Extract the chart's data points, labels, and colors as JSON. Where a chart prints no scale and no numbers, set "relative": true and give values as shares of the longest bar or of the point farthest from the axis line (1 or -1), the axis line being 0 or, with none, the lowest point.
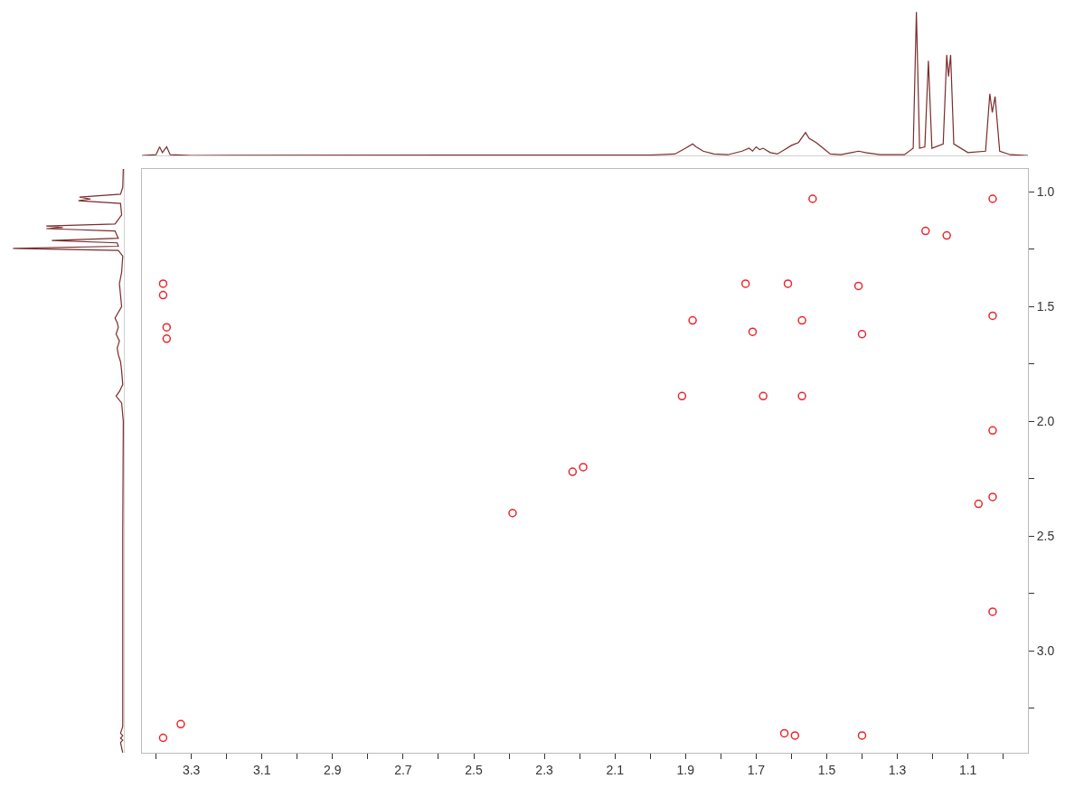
{
  "chart_data": [
    {
      "type": "line",
      "relative": true,
      "xlim": [
        3.44,
        0.93
      ],
      "tick_labels": false,
      "series": [
        {
          "color": "#7b2c2c",
          "x": [
            3.44,
            3.4,
            3.39,
            3.382,
            3.37,
            3.36,
            3.3,
            2.0,
            1.93,
            1.9,
            1.88,
            1.87,
            1.85,
            1.82,
            1.78,
            1.74,
            1.72,
            1.71,
            1.7,
            1.69,
            1.68,
            1.66,
            1.64,
            1.62,
            1.6,
            1.58,
            1.56,
            1.55,
            1.53,
            1.51,
            1.49,
            1.46,
            1.43,
            1.41,
            1.39,
            1.35,
            1.28,
            1.255,
            1.246,
            1.237,
            1.222,
            1.212,
            1.202,
            1.17,
            1.16,
            1.155,
            1.149,
            1.14,
            1.1,
            1.05,
            1.038,
            1.031,
            1.023,
            1.01,
            0.98,
            0.93
          ],
          "values": [
            0,
            0.005,
            0.06,
            0.02,
            0.06,
            0.005,
            0,
            0.003,
            0.01,
            0.05,
            0.08,
            0.06,
            0.03,
            0.01,
            0.005,
            0.03,
            0.05,
            0.03,
            0.06,
            0.04,
            0.05,
            0.02,
            0.01,
            0.04,
            0.07,
            0.09,
            0.16,
            0.12,
            0.09,
            0.05,
            0.01,
            0.005,
            0.02,
            0.03,
            0.02,
            0.005,
            0.005,
            0.05,
            1.0,
            0.05,
            0.06,
            0.66,
            0.05,
            0.08,
            0.7,
            0.55,
            0.7,
            0.08,
            0.02,
            0.03,
            0.43,
            0.3,
            0.41,
            0.03,
            0.005,
            0
          ]
        }
      ]
    },
    {
      "type": "line",
      "relative": true,
      "orientation": "horizontal",
      "ylim": [
        3.445,
        0.9
      ],
      "tick_labels": false,
      "series": [
        {
          "color": "#7b2c2c",
          "x": [
            0.9,
            0.98,
            1.01,
            1.023,
            1.031,
            1.038,
            1.05,
            1.1,
            1.14,
            1.149,
            1.155,
            1.16,
            1.17,
            1.202,
            1.212,
            1.222,
            1.237,
            1.246,
            1.255,
            1.28,
            1.35,
            1.4,
            1.45,
            1.5,
            1.55,
            1.57,
            1.59,
            1.62,
            1.65,
            1.68,
            1.71,
            1.74,
            1.78,
            1.84,
            1.87,
            1.89,
            1.92,
            2.0,
            2.5,
            3.0,
            3.33,
            3.36,
            3.37,
            3.382,
            3.39,
            3.4,
            3.445
          ],
          "values": [
            -0.005,
            -0.01,
            -0.03,
            -0.4,
            -0.3,
            -0.41,
            -0.03,
            -0.02,
            -0.08,
            -0.7,
            -0.55,
            -0.7,
            -0.08,
            -0.05,
            -0.65,
            -0.06,
            -0.05,
            -1.0,
            -0.05,
            -0.01,
            -0.02,
            -0.04,
            -0.03,
            -0.02,
            -0.08,
            -0.06,
            -0.05,
            -0.07,
            -0.04,
            -0.06,
            -0.05,
            -0.03,
            -0.02,
            -0.01,
            -0.04,
            -0.07,
            -0.02,
            -0.005,
            -0.01,
            -0.01,
            -0.01,
            -0.03,
            -0.01,
            -0.03,
            -0.01,
            -0.03,
            -0.01
          ]
        }
      ]
    },
    {
      "type": "scatter",
      "marker": "circle",
      "xlim": [
        3.44,
        0.93
      ],
      "ylim": [
        3.445,
        0.9
      ],
      "xticks": [
        {
          "value": 3.4,
          "label": null
        },
        3.3,
        {
          "value": 3.2,
          "label": null
        },
        3.1,
        {
          "value": 3.0,
          "label": null
        },
        2.9,
        {
          "value": 2.8,
          "label": null
        },
        2.7,
        {
          "value": 2.6,
          "label": null
        },
        2.5,
        {
          "value": 2.4,
          "label": null
        },
        2.3,
        {
          "value": 2.2,
          "label": null
        },
        2.1,
        {
          "value": 2.0,
          "label": null
        },
        1.9,
        {
          "value": 1.8,
          "label": null
        },
        1.7,
        {
          "value": 1.6,
          "label": null
        },
        1.5,
        {
          "value": 1.4,
          "label": null
        },
        1.3,
        {
          "value": 1.2,
          "label": null
        },
        1.1,
        {
          "value": 1.0,
          "label": null
        }
      ],
      "yticks": [
        {
          "value": 1.0,
          "label": "1.0"
        },
        {
          "value": 1.25,
          "label": null
        },
        1.5,
        {
          "value": 1.75,
          "label": null
        },
        {
          "value": 2.0,
          "label": "2.0"
        },
        {
          "value": 2.25,
          "label": null
        },
        2.5,
        {
          "value": 2.75,
          "label": null
        },
        {
          "value": 3.0,
          "label": "3.0"
        },
        {
          "value": 3.25,
          "label": null
        }
      ],
      "series": [
        {
          "color": "#e8262b",
          "x": [
            1.03,
            1.03,
            1.03,
            1.03,
            1.03,
            1.07,
            1.22,
            1.16,
            1.54,
            1.91,
            1.88,
            1.68,
            1.57,
            1.61,
            1.73,
            1.57,
            1.71,
            1.41,
            1.4,
            1.4,
            1.59,
            1.62,
            3.38,
            3.38,
            3.37,
            3.37,
            3.38,
            3.33,
            2.19,
            2.22,
            2.39
          ],
          "values": [
            1.03,
            1.54,
            2.04,
            2.33,
            2.83,
            2.36,
            1.17,
            1.19,
            1.03,
            1.89,
            1.56,
            1.89,
            1.89,
            1.4,
            1.4,
            1.56,
            1.61,
            1.41,
            1.62,
            3.37,
            3.37,
            3.36,
            1.4,
            1.45,
            1.59,
            1.64,
            3.38,
            3.32,
            2.2,
            2.22,
            2.4
          ]
        }
      ]
    }
  ]
}
